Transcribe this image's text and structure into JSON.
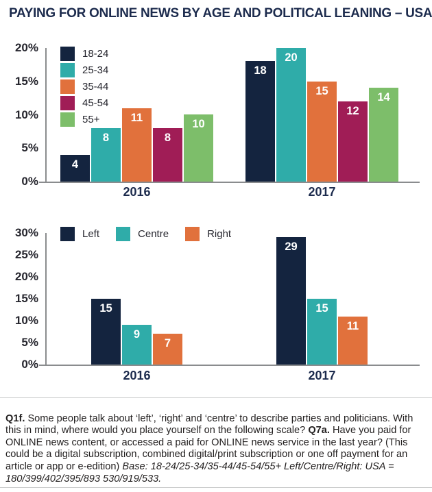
{
  "title": "PAYING FOR ONLINE NEWS BY AGE AND POLITICAL LEANING – USA",
  "colors": {
    "navy": "#14243F",
    "teal": "#2FACA9",
    "orange": "#E1713C",
    "magenta": "#A01D56",
    "green": "#7DBE6A",
    "axis_gray": "#8A8C8E",
    "tick_text": "#26262E",
    "heading_navy": "#1C2B4D",
    "footer_text": "#232020",
    "rule_gray": "#C9CACB"
  },
  "chart_data": [
    {
      "type": "bar",
      "name": "paying-by-age",
      "categories": [
        "2016",
        "2017"
      ],
      "series": [
        {
          "name": "18-24",
          "color_key": "navy",
          "values": [
            4,
            18
          ]
        },
        {
          "name": "25-34",
          "color_key": "teal",
          "values": [
            8,
            20
          ]
        },
        {
          "name": "35-44",
          "color_key": "orange",
          "values": [
            11,
            15
          ]
        },
        {
          "name": "45-54",
          "color_key": "magenta",
          "values": [
            8,
            12
          ]
        },
        {
          "name": "55+",
          "color_key": "green",
          "values": [
            10,
            14
          ]
        }
      ],
      "ylim": [
        0,
        20
      ],
      "yticks": [
        "20%",
        "15%",
        "10%",
        "5%",
        "0%"
      ],
      "grid": false,
      "legend_position": "top-left",
      "legend_orientation": "vertical",
      "value_labels": "inside-top-white"
    },
    {
      "type": "bar",
      "name": "paying-by-political-leaning",
      "categories": [
        "2016",
        "2017"
      ],
      "series": [
        {
          "name": "Left",
          "color_key": "navy",
          "values": [
            15,
            29
          ]
        },
        {
          "name": "Centre",
          "color_key": "teal",
          "values": [
            9,
            15
          ]
        },
        {
          "name": "Right",
          "color_key": "orange",
          "values": [
            7,
            11
          ]
        }
      ],
      "ylim": [
        0,
        30
      ],
      "yticks": [
        "30%",
        "25%",
        "20%",
        "15%",
        "10%",
        "5%",
        "0%"
      ],
      "grid": false,
      "legend_position": "top-left",
      "legend_orientation": "horizontal",
      "value_labels": "inside-top-white"
    }
  ],
  "footnote": {
    "parts": [
      {
        "style": "bold",
        "text": "Q1f."
      },
      {
        "style": "normal",
        "text": " Some people talk about ‘left’, ‘right’ and ‘centre’ to describe parties and politicians. With this in mind, where would you place yourself on the following scale? "
      },
      {
        "style": "bold",
        "text": "Q7a."
      },
      {
        "style": "normal",
        "text": " Have you paid for ONLINE news content, or accessed a paid for ONLINE news service in the last year? (This could be a digital subscription, combined digital/print subscription or one off payment for an article or app or e-edition) "
      },
      {
        "style": "italic",
        "text": "Base: 18-24/25-34/35-44/45-54/55+ Left/Centre/Right: USA = 180/399/402/395/893 530/919/533."
      }
    ]
  }
}
